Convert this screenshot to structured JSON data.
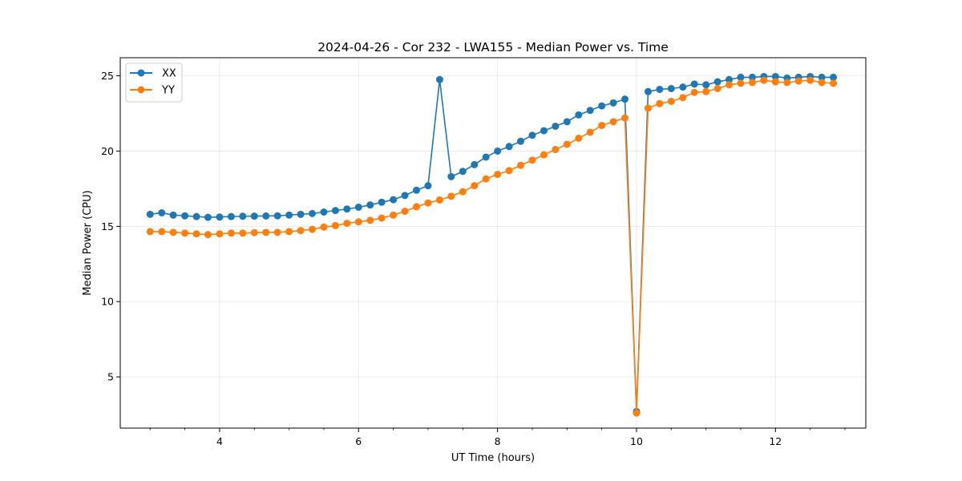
{
  "chart_data": {
    "type": "line",
    "title": "2024-04-26 - Cor 232 - LWA155 - Median Power vs. Time",
    "xlabel": "UT Time (hours)",
    "ylabel": "Median Power (CPU)",
    "xlim": [
      2.57,
      13.3
    ],
    "ylim": [
      1.6,
      26.2
    ],
    "xticks": [
      4,
      6,
      8,
      10,
      12
    ],
    "yticks": [
      5,
      10,
      15,
      20,
      25
    ],
    "xtick_labels": [
      "4",
      "6",
      "8",
      "10",
      "12"
    ],
    "ytick_labels": [
      "5",
      "10",
      "15",
      "20",
      "25"
    ],
    "grid": true,
    "legend_position": "top-left",
    "x": [
      3.0,
      3.167,
      3.333,
      3.5,
      3.667,
      3.833,
      4.0,
      4.167,
      4.333,
      4.5,
      4.667,
      4.833,
      5.0,
      5.167,
      5.333,
      5.5,
      5.667,
      5.833,
      6.0,
      6.167,
      6.333,
      6.5,
      6.667,
      6.833,
      7.0,
      7.167,
      7.333,
      7.5,
      7.667,
      7.833,
      8.0,
      8.167,
      8.333,
      8.5,
      8.667,
      8.833,
      9.0,
      9.167,
      9.333,
      9.5,
      9.667,
      9.833,
      10.0,
      10.167,
      10.333,
      10.5,
      10.667,
      10.833,
      11.0,
      11.167,
      11.333,
      11.5,
      11.667,
      11.833,
      12.0,
      12.167,
      12.333,
      12.5,
      12.667,
      12.833
    ],
    "series": [
      {
        "name": "XX",
        "color": "#1f77b4",
        "values": [
          15.8,
          15.9,
          15.75,
          15.7,
          15.65,
          15.6,
          15.62,
          15.65,
          15.67,
          15.68,
          15.69,
          15.7,
          15.75,
          15.8,
          15.85,
          15.95,
          16.05,
          16.15,
          16.27,
          16.42,
          16.6,
          16.77,
          17.05,
          17.4,
          17.7,
          24.75,
          18.3,
          18.65,
          19.1,
          19.6,
          20.0,
          20.3,
          20.65,
          21.05,
          21.35,
          21.65,
          21.95,
          22.4,
          22.7,
          23.0,
          23.2,
          23.45,
          2.7,
          23.95,
          24.1,
          24.15,
          24.25,
          24.45,
          24.4,
          24.6,
          24.75,
          24.9,
          24.9,
          24.95,
          24.95,
          24.85,
          24.9,
          24.95,
          24.9,
          24.9
        ]
      },
      {
        "name": "YY",
        "color": "#ff7f0e",
        "values": [
          14.65,
          14.65,
          14.6,
          14.55,
          14.5,
          14.45,
          14.5,
          14.55,
          14.55,
          14.58,
          14.6,
          14.6,
          14.65,
          14.72,
          14.8,
          14.95,
          15.05,
          15.2,
          15.3,
          15.4,
          15.55,
          15.75,
          16.0,
          16.3,
          16.55,
          16.75,
          17.0,
          17.3,
          17.7,
          18.15,
          18.45,
          18.7,
          19.05,
          19.4,
          19.75,
          20.1,
          20.45,
          20.85,
          21.25,
          21.7,
          21.95,
          22.2,
          2.6,
          22.85,
          23.15,
          23.3,
          23.55,
          23.9,
          23.95,
          24.15,
          24.4,
          24.5,
          24.55,
          24.7,
          24.6,
          24.55,
          24.65,
          24.7,
          24.55,
          24.5
        ]
      }
    ]
  }
}
